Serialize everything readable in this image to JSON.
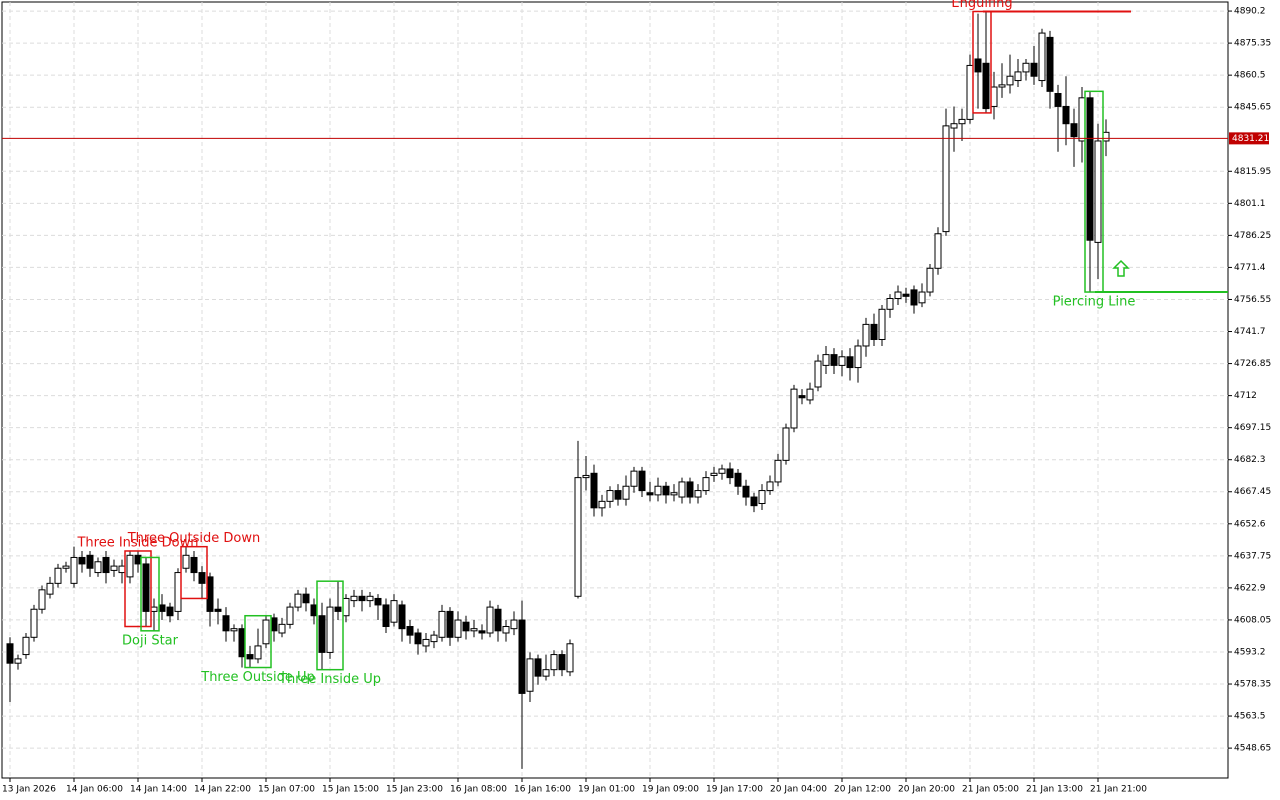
{
  "chart_data": {
    "type": "candlestick",
    "categories": [
      "13 Jan 2026",
      null,
      null,
      null,
      null,
      null,
      null,
      null,
      "14 Jan 06:00",
      null,
      null,
      null,
      null,
      null,
      null,
      null,
      "14 Jan 14:00",
      null,
      null,
      null,
      null,
      null,
      null,
      null,
      "14 Jan 22:00",
      null,
      null,
      null,
      null,
      null,
      null,
      null,
      "15 Jan 07:00",
      null,
      null,
      null,
      null,
      null,
      null,
      null,
      "15 Jan 15:00",
      null,
      null,
      null,
      null,
      null,
      null,
      null,
      "15 Jan 23:00",
      null,
      null,
      null,
      null,
      null,
      null,
      null,
      "16 Jan 08:00",
      null,
      null,
      null,
      null,
      null,
      null,
      null,
      "16 Jan 16:00",
      null,
      null,
      null,
      null,
      null,
      null,
      null,
      "19 Jan 01:00",
      null,
      null,
      null,
      null,
      null,
      null,
      null,
      "19 Jan 09:00",
      null,
      null,
      null,
      null,
      null,
      null,
      null,
      "19 Jan 17:00",
      null,
      null,
      null,
      null,
      null,
      null,
      null,
      "20 Jan 04:00",
      null,
      null,
      null,
      null,
      null,
      null,
      null,
      "20 Jan 12:00",
      null,
      null,
      null,
      null,
      null,
      null,
      null,
      "20 Jan 20:00",
      null,
      null,
      null,
      null,
      null,
      null,
      null,
      "21 Jan 05:00",
      null,
      null,
      null,
      null,
      null,
      null,
      null,
      "21 Jan 13:00",
      null,
      null,
      null,
      null,
      null,
      null,
      null,
      "21 Jan 21:00",
      null
    ],
    "open": [
      4597,
      4588,
      4592,
      4600,
      4613,
      4620,
      4625,
      4632,
      4625,
      4637,
      4638,
      4630,
      4637,
      4631,
      4630,
      4628,
      4638,
      4634,
      4612,
      4615,
      4614,
      4612,
      4632,
      4637,
      4630,
      4628,
      4613,
      4610,
      4603,
      4604,
      4592,
      4590,
      4597,
      4609,
      4602,
      4606,
      4614,
      4620,
      4615,
      4610,
      4593,
      4614,
      4610,
      4617,
      4619,
      4617,
      4618,
      4615,
      4607,
      4615,
      4605,
      4602,
      4596,
      4598,
      4600,
      4612,
      4600,
      4607,
      4603,
      4603,
      4602,
      4613,
      4602,
      4604,
      4608,
      4575,
      4590,
      4582,
      4585,
      4592,
      4584,
      4619,
      4674,
      4676,
      4660,
      4663,
      4668,
      4664,
      4670,
      4677,
      4667,
      4666,
      4670,
      4666,
      4665,
      4672,
      4665,
      4668,
      4675,
      4676,
      4678,
      4676,
      4670,
      4665,
      4662,
      4668,
      4672,
      4682,
      4697,
      4712,
      4710,
      4716,
      4726,
      4731,
      4726,
      4730,
      4725,
      4735,
      4745,
      4738,
      4752,
      4757,
      4759,
      4761,
      4755,
      4760,
      4771,
      4788,
      4836,
      4838,
      4840,
      4868,
      4866,
      4846,
      4855,
      4856,
      4858,
      4862,
      4866,
      4858,
      4878,
      4852,
      4846,
      4838,
      4830,
      4850,
      4783,
      4830
    ],
    "high": [
      4600,
      4592,
      4602,
      4615,
      4624,
      4628,
      4634,
      4635,
      4642,
      4640,
      4640,
      4637,
      4640,
      4636,
      4636,
      4640,
      4640,
      4637,
      4618,
      4620,
      4616,
      4632,
      4642,
      4640,
      4633,
      4630,
      4618,
      4614,
      4606,
      4606,
      4596,
      4604,
      4610,
      4611,
      4609,
      4616,
      4622,
      4623,
      4618,
      4616,
      4618,
      4626,
      4620,
      4622,
      4622,
      4621,
      4620,
      4618,
      4620,
      4617,
      4608,
      4604,
      4602,
      4603,
      4615,
      4614,
      4612,
      4610,
      4608,
      4606,
      4617,
      4615,
      4608,
      4612,
      4617,
      4593,
      4592,
      4592,
      4594,
      4594,
      4599,
      4691,
      4684,
      4680,
      4666,
      4670,
      4671,
      4675,
      4679,
      4679,
      4672,
      4674,
      4672,
      4671,
      4674,
      4674,
      4671,
      4677,
      4679,
      4680,
      4681,
      4678,
      4673,
      4667,
      4671,
      4675,
      4685,
      4699,
      4717,
      4715,
      4718,
      4731,
      4735,
      4734,
      4733,
      4734,
      4738,
      4748,
      4750,
      4754,
      4759,
      4763,
      4762,
      4763,
      4764,
      4773,
      4790,
      4845,
      4846,
      4845,
      4870,
      4889,
      4890,
      4862,
      4866,
      4870,
      4868,
      4868,
      4874,
      4882,
      4881,
      4856,
      4860,
      4845,
      4855,
      4853,
      4838,
      4840
    ],
    "low": [
      4570,
      4585,
      4590,
      4598,
      4611,
      4618,
      4623,
      4630,
      4623,
      4630,
      4628,
      4628,
      4625,
      4628,
      4625,
      4625,
      4630,
      4605,
      4603,
      4608,
      4607,
      4608,
      4630,
      4626,
      4618,
      4605,
      4606,
      4598,
      4598,
      4586,
      4586,
      4588,
      4595,
      4598,
      4600,
      4604,
      4612,
      4612,
      4606,
      4585,
      4590,
      4608,
      4607,
      4614,
      4612,
      4614,
      4608,
      4602,
      4605,
      4598,
      4597,
      4592,
      4593,
      4595,
      4598,
      4596,
      4598,
      4599,
      4600,
      4599,
      4600,
      4598,
      4598,
      4601,
      4539,
      4570,
      4578,
      4580,
      4582,
      4582,
      4582,
      4618,
      4668,
      4656,
      4656,
      4660,
      4661,
      4661,
      4667,
      4665,
      4663,
      4663,
      4662,
      4663,
      4662,
      4662,
      4662,
      4666,
      4672,
      4673,
      4671,
      4666,
      4661,
      4658,
      4659,
      4666,
      4670,
      4680,
      4695,
      4708,
      4708,
      4714,
      4722,
      4722,
      4721,
      4719,
      4718,
      4730,
      4735,
      4735,
      4748,
      4754,
      4755,
      4750,
      4753,
      4758,
      4768,
      4786,
      4825,
      4830,
      4838,
      4845,
      4843,
      4840,
      4850,
      4852,
      4855,
      4858,
      4856,
      4855,
      4845,
      4825,
      4828,
      4818,
      4820,
      4760,
      4766,
      4823
    ],
    "close": [
      4588,
      4590,
      4600,
      4613,
      4622,
      4625,
      4632,
      4633,
      4637,
      4634,
      4632,
      4635,
      4630,
      4633,
      4633,
      4638,
      4634,
      4612,
      4614,
      4612,
      4610,
      4630,
      4638,
      4630,
      4625,
      4612,
      4612,
      4603,
      4604,
      4591,
      4590,
      4596,
      4608,
      4603,
      4606,
      4614,
      4620,
      4616,
      4610,
      4593,
      4614,
      4612,
      4618,
      4619,
      4617,
      4619,
      4615,
      4605,
      4617,
      4604,
      4601,
      4597,
      4599,
      4601,
      4612,
      4600,
      4608,
      4603,
      4604,
      4602,
      4614,
      4603,
      4605,
      4608,
      4574,
      4590,
      4582,
      4585,
      4592,
      4585,
      4597,
      4674,
      4675,
      4660,
      4663,
      4668,
      4664,
      4670,
      4677,
      4668,
      4666,
      4670,
      4666,
      4667,
      4672,
      4665,
      4668,
      4674,
      4676,
      4678,
      4674,
      4670,
      4665,
      4661,
      4668,
      4672,
      4682,
      4697,
      4715,
      4711,
      4715,
      4728,
      4731,
      4726,
      4730,
      4725,
      4735,
      4745,
      4738,
      4752,
      4757,
      4760,
      4758,
      4754,
      4760,
      4771,
      4787,
      4837,
      4838,
      4840,
      4865,
      4862,
      4845,
      4855,
      4856,
      4860,
      4862,
      4866,
      4860,
      4880,
      4853,
      4846,
      4838,
      4832,
      4850,
      4784,
      4830,
      4834
    ],
    "bull_color": "#ffffff",
    "bear_color": "#000000",
    "outline_color": "#000000",
    "ylim": [
      4534.8,
      4894.4
    ],
    "yticks": [
      4548.65,
      4563.5,
      4578.35,
      4593.2,
      4608.05,
      4622.9,
      4637.75,
      4652.6,
      4667.45,
      4682.3,
      4697.15,
      4712,
      4726.85,
      4741.7,
      4756.55,
      4771.4,
      4786.25,
      4801.1,
      4815.95,
      4845.65,
      4860.5,
      4875.35,
      4890.2
    ],
    "grid": true,
    "current_price": 4831.21,
    "current_price_color": "#c00000",
    "patterns": [
      {
        "name": "Three Inside Down",
        "color": "#e01010",
        "direction": "bearish",
        "candles": [
          15,
          17
        ]
      },
      {
        "name": "Doji Star",
        "color": "#22c022",
        "direction": "bullish",
        "candles": [
          17,
          18
        ]
      },
      {
        "name": "Three Outside Down",
        "color": "#e01010",
        "direction": "bearish",
        "candles": [
          22,
          24
        ]
      },
      {
        "name": "Three Outside Up",
        "color": "#22c022",
        "direction": "bullish",
        "candles": [
          30,
          32
        ]
      },
      {
        "name": "Three Inside Up",
        "color": "#22c022",
        "direction": "bullish",
        "candles": [
          39,
          41
        ]
      },
      {
        "name": "Engulfing",
        "color": "#e01010",
        "direction": "bearish",
        "candles": [
          121,
          122
        ],
        "signal_line": true
      },
      {
        "name": "Piercing Line",
        "color": "#22c022",
        "direction": "bullish",
        "candles": [
          135,
          136
        ],
        "signal_line": true
      }
    ]
  }
}
